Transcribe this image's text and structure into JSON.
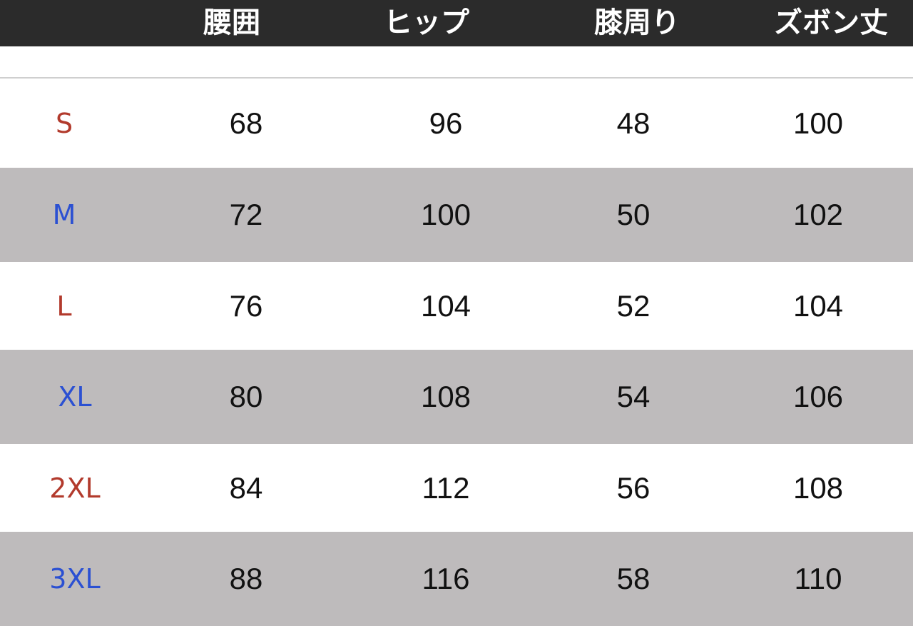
{
  "headers": [
    "腰囲",
    "ヒップ",
    "膝周り",
    "ズボン丈"
  ],
  "rows": [
    {
      "size": "S",
      "color": "#b23a2c",
      "values": [
        "68",
        "96",
        "48",
        "100"
      ]
    },
    {
      "size": "M",
      "color": "#2b50d2",
      "values": [
        "72",
        "100",
        "50",
        "102"
      ]
    },
    {
      "size": "L",
      "color": "#b23a2c",
      "values": [
        "76",
        "104",
        "52",
        "104"
      ]
    },
    {
      "size": "XL",
      "color": "#2b50d2",
      "values": [
        "80",
        "108",
        "54",
        "106"
      ]
    },
    {
      "size": "2XL",
      "color": "#b23a2c",
      "values": [
        "84",
        "112",
        "56",
        "108"
      ]
    },
    {
      "size": "3XL",
      "color": "#2b50d2",
      "values": [
        "88",
        "116",
        "58",
        "110"
      ]
    }
  ],
  "colors": {
    "header_bg": "#2b2b2b",
    "stripe": "#bebbbc"
  }
}
